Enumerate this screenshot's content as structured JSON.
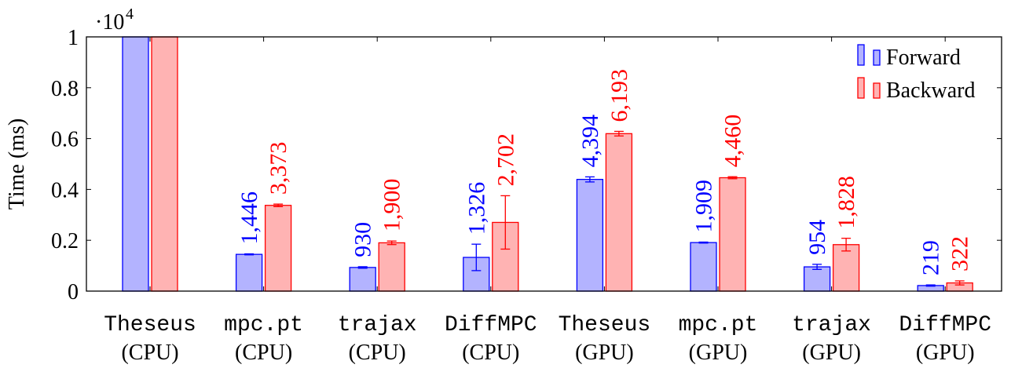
{
  "chart_data": {
    "type": "bar",
    "categories": [
      {
        "name": "Theseus",
        "platform": "(CPU)"
      },
      {
        "name": "mpc.pt",
        "platform": "(CPU)"
      },
      {
        "name": "trajax",
        "platform": "(CPU)"
      },
      {
        "name": "DiffMPC",
        "platform": "(CPU)"
      },
      {
        "name": "Theseus",
        "platform": "(GPU)"
      },
      {
        "name": "mpc.pt",
        "platform": "(GPU)"
      },
      {
        "name": "trajax",
        "platform": "(GPU)"
      },
      {
        "name": "DiffMPC",
        "platform": "(GPU)"
      }
    ],
    "series": [
      {
        "name": "Forward",
        "color": "#0000ff",
        "fill": "#b3b3ff",
        "values": [
          10000,
          1446,
          930,
          1326,
          4394,
          1909,
          954,
          219
        ],
        "labels": [
          "",
          "1,446",
          "930",
          "1,326",
          "4,394",
          "1,909",
          "954",
          "219"
        ],
        "errors": [
          0,
          20,
          30,
          520,
          100,
          20,
          100,
          25
        ]
      },
      {
        "name": "Backward",
        "color": "#ff0000",
        "fill": "#ffb3b3",
        "values": [
          10000,
          3373,
          1900,
          2702,
          6193,
          4460,
          1828,
          322
        ],
        "labels": [
          "",
          "3,373",
          "1,900",
          "2,702",
          "6,193",
          "4,460",
          "1,828",
          "322"
        ],
        "errors": [
          0,
          50,
          70,
          1050,
          90,
          40,
          250,
          80
        ]
      }
    ],
    "ylabel": "Time (ms)",
    "y_multiplier": "·10",
    "y_multiplier_exp": "4",
    "ylim": [
      0,
      10000
    ],
    "yticks": [
      0,
      2000,
      4000,
      6000,
      8000,
      10000
    ],
    "ytick_labels": [
      "0",
      "0.2",
      "0.4",
      "0.6",
      "0.8",
      "1"
    ],
    "legend_position": "top-right",
    "grid": false
  }
}
